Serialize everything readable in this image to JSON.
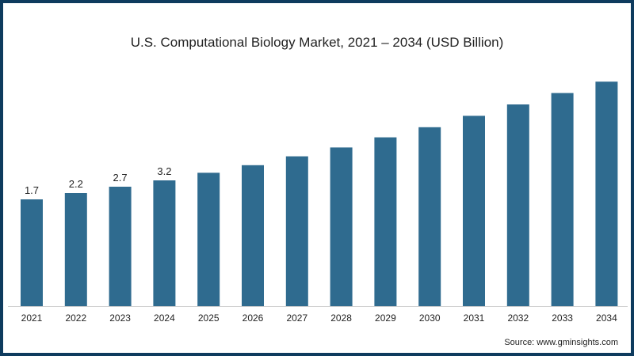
{
  "chart_data": {
    "type": "bar",
    "title": "U.S. Computational Biology Market, 2021 – 2034 (USD Billion)",
    "xlabel": "",
    "ylabel": "",
    "categories": [
      "2021",
      "2022",
      "2023",
      "2024",
      "2025",
      "2026",
      "2027",
      "2028",
      "2029",
      "2030",
      "2031",
      "2032",
      "2033",
      "2034"
    ],
    "values": [
      1.7,
      2.2,
      2.7,
      3.2,
      3.8,
      4.4,
      5.1,
      5.8,
      6.6,
      7.4,
      8.3,
      9.2,
      10.1,
      11.0
    ],
    "data_labels": [
      "1.7",
      "2.2",
      "2.7",
      "3.2",
      null,
      null,
      null,
      null,
      null,
      null,
      null,
      null,
      null,
      null
    ],
    "bar_color": "#2f6b8f",
    "grid": false,
    "source": "Source: www.gminsights.com"
  }
}
